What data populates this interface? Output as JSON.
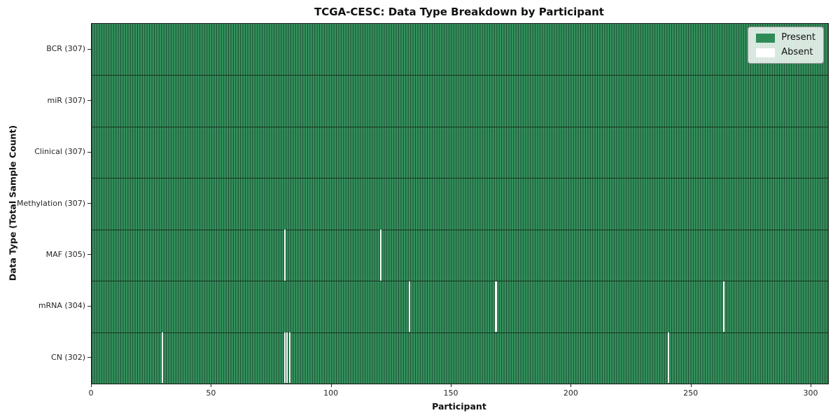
{
  "title": "TCGA-CESC: Data Type Breakdown by Participant",
  "xlabel": "Participant",
  "ylabel": "Data Type (Total Sample Count)",
  "colors": {
    "present_fill": "#35925e",
    "present_legend": "#2e8b57",
    "cell_edge": "#1b4c30",
    "absent": "#ffffff",
    "row_separator": "#14341f",
    "frame": "#1a1a1a"
  },
  "chart_data": {
    "type": "heatmap",
    "title": "TCGA-CESC: Data Type Breakdown by Participant",
    "xlabel": "Participant",
    "ylabel": "Data Type (Total Sample Count)",
    "total_participants": 307,
    "x_axis": {
      "label": "Participant",
      "ticks": [
        0,
        50,
        100,
        150,
        200,
        250,
        300
      ],
      "range": [
        0,
        307
      ]
    },
    "rows": [
      {
        "name": "BCR",
        "label": "BCR (307)",
        "present_count": 307,
        "absent_participants": []
      },
      {
        "name": "miR",
        "label": "miR (307)",
        "present_count": 307,
        "absent_participants": []
      },
      {
        "name": "Clinical",
        "label": "Clinical (307)",
        "present_count": 307,
        "absent_participants": []
      },
      {
        "name": "Methylation",
        "label": "Methylation (307)",
        "present_count": 307,
        "absent_participants": []
      },
      {
        "name": "MAF",
        "label": "MAF (305)",
        "present_count": 305,
        "absent_participants": [
          80,
          120
        ]
      },
      {
        "name": "mRNA",
        "label": "mRNA (304)",
        "present_count": 304,
        "absent_participants": [
          132,
          168,
          263
        ]
      },
      {
        "name": "CN",
        "label": "CN (302)",
        "present_count": 302,
        "absent_participants": [
          29,
          80,
          81,
          82,
          240
        ]
      }
    ],
    "legend": [
      {
        "label": "Present",
        "color": "#2e8b57"
      },
      {
        "label": "Absent",
        "color": "#ffffff"
      }
    ],
    "legend_position": "upper right",
    "grid": false
  }
}
